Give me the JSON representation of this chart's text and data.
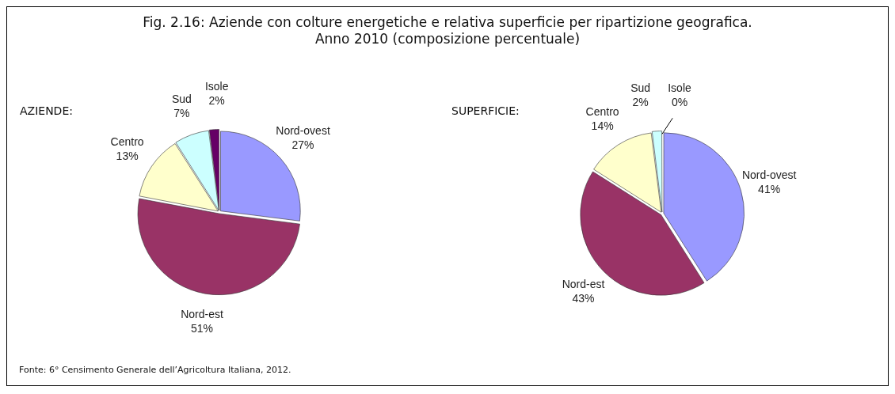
{
  "chart_data": [
    {
      "type": "pie",
      "title": "Fig. 2.16: Aziende con colture energetiche e relativa superficie per ripartizione geografica.\nAnno 2010 (composizione percentuale)",
      "subtitle": "AZIENDE:",
      "categories": [
        "Nord-ovest",
        "Nord-est",
        "Centro",
        "Sud",
        "Isole"
      ],
      "values": [
        27,
        51,
        13,
        7,
        2
      ],
      "value_labels": [
        "27%",
        "51%",
        "13%",
        "7%",
        "2%"
      ],
      "colors": [
        "#9999ff",
        "#993366",
        "#ffffcc",
        "#ccffff",
        "#660066"
      ],
      "legend": false,
      "annotations": [
        "Fonte: 6° Censimento Generale dell’Agricoltura Italiana, 2012."
      ]
    },
    {
      "type": "pie",
      "subtitle": "SUPERFICIE:",
      "categories": [
        "Nord-ovest",
        "Nord-est",
        "Centro",
        "Sud",
        "Isole"
      ],
      "values": [
        41,
        43,
        14,
        2,
        0
      ],
      "value_labels": [
        "41%",
        "43%",
        "14%",
        "2%",
        "0%"
      ],
      "colors": [
        "#9999ff",
        "#993366",
        "#ffffcc",
        "#ccffff",
        "#660066"
      ],
      "legend": false
    }
  ]
}
